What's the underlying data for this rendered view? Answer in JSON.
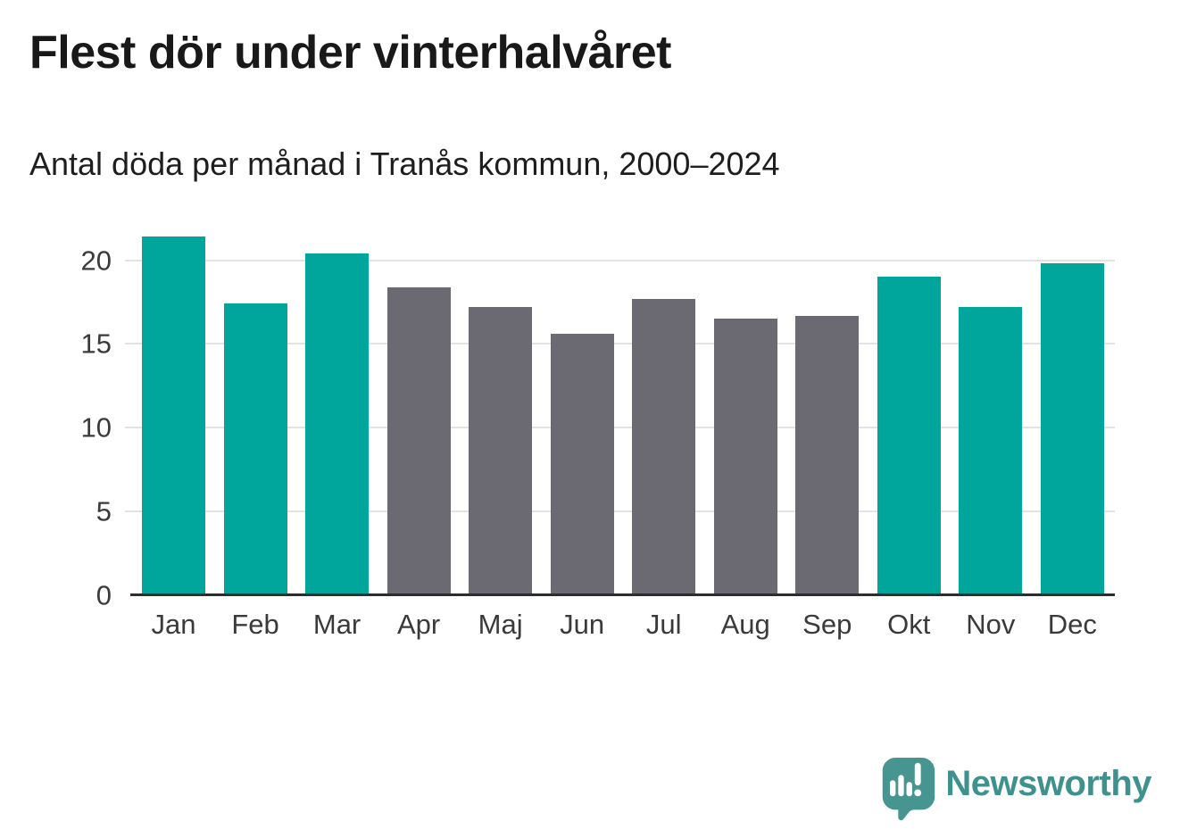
{
  "header": {
    "title": "Flest dör under vinterhalvåret",
    "subtitle": "Antal döda per månad i Tranås kommun, 2000–2024"
  },
  "brand": {
    "name": "Newsworthy"
  },
  "colors": {
    "winter_bar": "#00a69c",
    "summer_bar": "#6b6a72",
    "gridline": "#e3e3e4",
    "axis_line": "#2d2d2d",
    "title_text": "#191919",
    "tick_label": "#3a3a3a",
    "brand_text": "#3f918e",
    "logo_icon": "#469590"
  },
  "chart_data": {
    "type": "bar",
    "title": "Flest dör under vinterhalvåret",
    "subtitle": "Antal döda per månad i Tranås kommun, 2000–2024",
    "categories": [
      "Jan",
      "Feb",
      "Mar",
      "Apr",
      "Maj",
      "Jun",
      "Jul",
      "Aug",
      "Sep",
      "Okt",
      "Nov",
      "Dec"
    ],
    "values": [
      21.4,
      17.4,
      20.4,
      18.4,
      17.2,
      15.6,
      17.7,
      16.5,
      16.7,
      19.0,
      17.2,
      19.8
    ],
    "groups": [
      "winter",
      "winter",
      "winter",
      "summer",
      "summer",
      "summer",
      "summer",
      "summer",
      "summer",
      "winter",
      "winter",
      "winter"
    ],
    "group_colors": {
      "winter": "#00a69c",
      "summer": "#6b6a72"
    },
    "xlabel": "",
    "ylabel": "",
    "ylim": [
      0,
      22
    ],
    "yticks": [
      0,
      5,
      10,
      15,
      20
    ],
    "grid": true,
    "legend": false
  }
}
